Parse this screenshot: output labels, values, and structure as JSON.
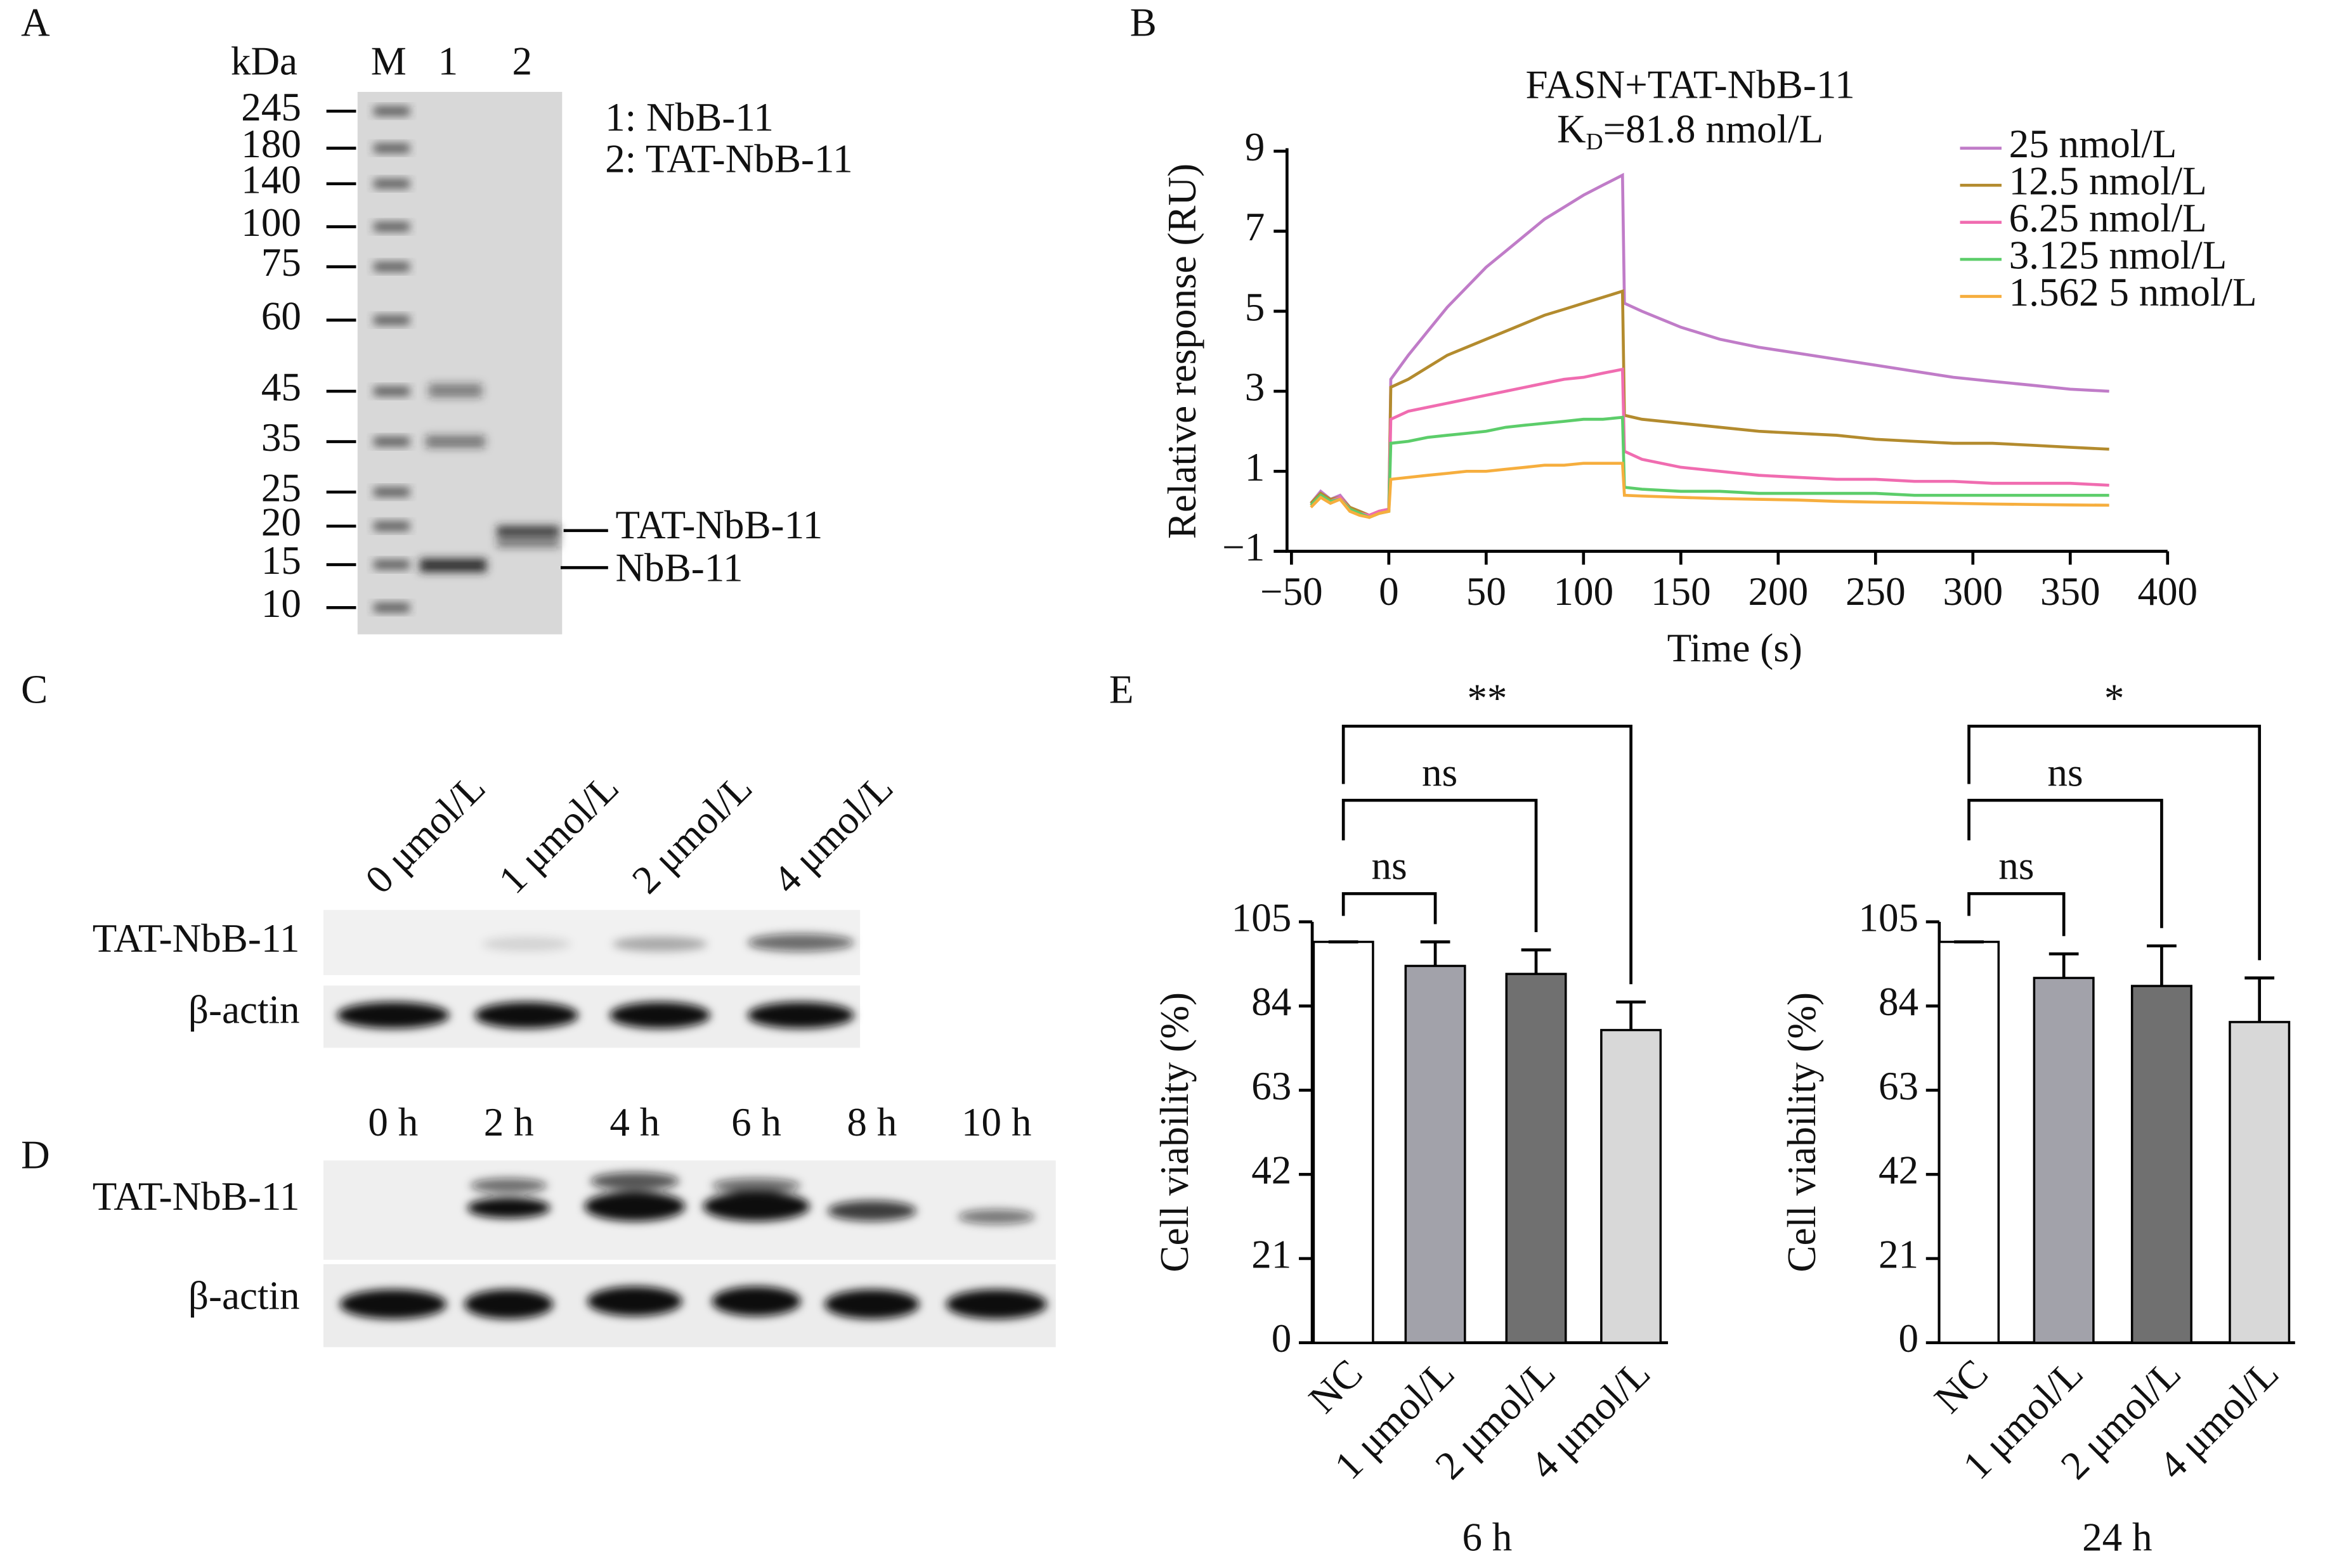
{
  "panel_labels": [
    "A",
    "B",
    "C",
    "D",
    "E"
  ],
  "gel": {
    "unit": "kDa",
    "lanes": [
      "M",
      "1",
      "2"
    ],
    "markers": [
      "245",
      "180",
      "140",
      "100",
      "75",
      "60",
      "45",
      "35",
      "25",
      "20",
      "15",
      "10"
    ],
    "legend": [
      "1: NbB-11",
      "2: TAT-NbB-11"
    ],
    "band_labels": [
      "TAT-NbB-11",
      "NbB-11"
    ]
  },
  "blot_c": {
    "lanes": [
      "0 μmol/L",
      "1 μmol/L",
      "2 μmol/L",
      "4 μmol/L"
    ],
    "rows": [
      "TAT-NbB-11",
      "β-actin"
    ]
  },
  "blot_d": {
    "lanes": [
      "0 h",
      "2 h",
      "4 h",
      "6 h",
      "8 h",
      "10 h"
    ],
    "rows": [
      "TAT-NbB-11",
      "β-actin"
    ]
  },
  "chart_data": [
    {
      "type": "line",
      "title": "FASN+TAT-NbB-11",
      "subtitle_parts": [
        "K",
        "D",
        "=81.8 nmol/L"
      ],
      "xlabel": "Time (s)",
      "ylabel": "Relative response (RU)",
      "xlim": [
        -50,
        400
      ],
      "ylim": [
        -1,
        9
      ],
      "xticks": [
        {
          "value": -50,
          "label": "−50"
        },
        0,
        50,
        100,
        150,
        200,
        250,
        300,
        350,
        400
      ],
      "yticks": [
        {
          "value": -1,
          "label": "−1"
        },
        1,
        3,
        5,
        7,
        9
      ],
      "legend": "top-right",
      "x": [
        -40,
        -35,
        -30,
        -25,
        -20,
        -15,
        -10,
        -5,
        0,
        1,
        10,
        20,
        30,
        40,
        50,
        60,
        70,
        80,
        90,
        100,
        110,
        120,
        121,
        130,
        150,
        170,
        190,
        210,
        230,
        250,
        270,
        290,
        310,
        330,
        350,
        370
      ],
      "series": [
        {
          "name": "25 nmol/L",
          "color": "#c07cc8",
          "values": [
            0.2,
            0.5,
            0.3,
            0.4,
            0.1,
            0.0,
            -0.1,
            0.0,
            0.05,
            3.3,
            3.9,
            4.5,
            5.1,
            5.6,
            6.1,
            6.5,
            6.9,
            7.3,
            7.6,
            7.9,
            8.15,
            8.4,
            5.2,
            5.0,
            4.6,
            4.3,
            4.1,
            3.95,
            3.8,
            3.65,
            3.5,
            3.35,
            3.25,
            3.15,
            3.05,
            3.0
          ]
        },
        {
          "name": "12.5 nmol/L",
          "color": "#b38b2e",
          "values": [
            0.2,
            0.45,
            0.3,
            0.35,
            0.1,
            0.0,
            -0.1,
            0.0,
            0.05,
            3.1,
            3.3,
            3.6,
            3.9,
            4.1,
            4.3,
            4.5,
            4.7,
            4.9,
            5.05,
            5.2,
            5.35,
            5.5,
            2.4,
            2.3,
            2.2,
            2.1,
            2.0,
            1.95,
            1.9,
            1.8,
            1.75,
            1.7,
            1.7,
            1.65,
            1.6,
            1.55
          ]
        },
        {
          "name": "6.25 nmol/L",
          "color": "#f06cb0",
          "values": [
            0.15,
            0.4,
            0.25,
            0.35,
            0.05,
            -0.05,
            -0.1,
            0.0,
            0.05,
            2.3,
            2.5,
            2.6,
            2.7,
            2.8,
            2.9,
            3.0,
            3.1,
            3.2,
            3.3,
            3.35,
            3.45,
            3.55,
            1.5,
            1.3,
            1.1,
            1.0,
            0.9,
            0.85,
            0.8,
            0.8,
            0.75,
            0.75,
            0.7,
            0.7,
            0.7,
            0.65
          ]
        },
        {
          "name": "3.125 nmol/L",
          "color": "#5ccd6a",
          "values": [
            0.15,
            0.4,
            0.25,
            0.3,
            0.05,
            -0.05,
            -0.15,
            -0.05,
            0.0,
            1.7,
            1.75,
            1.85,
            1.9,
            1.95,
            2.0,
            2.1,
            2.15,
            2.2,
            2.25,
            2.3,
            2.3,
            2.35,
            0.6,
            0.55,
            0.5,
            0.5,
            0.45,
            0.45,
            0.45,
            0.45,
            0.4,
            0.4,
            0.4,
            0.4,
            0.4,
            0.4
          ]
        },
        {
          "name": "1.562 5 nmol/L",
          "color": "#f6ae3e",
          "values": [
            0.1,
            0.35,
            0.2,
            0.3,
            0.0,
            -0.1,
            -0.15,
            -0.05,
            0.0,
            0.8,
            0.85,
            0.9,
            0.95,
            1.0,
            1.0,
            1.05,
            1.1,
            1.15,
            1.15,
            1.2,
            1.2,
            1.2,
            0.4,
            0.38,
            0.35,
            0.32,
            0.3,
            0.28,
            0.25,
            0.23,
            0.22,
            0.2,
            0.18,
            0.17,
            0.16,
            0.15
          ]
        }
      ]
    },
    {
      "type": "bar",
      "xlabel": "6 h",
      "ylabel": "Cell viability (%)",
      "categories": [
        "NC",
        "1 μmol/L",
        "2 μmol/L",
        "4 μmol/L"
      ],
      "values": [
        100,
        94,
        92,
        78
      ],
      "errors": [
        0,
        6,
        6,
        7
      ],
      "colors": [
        "#ffffff",
        "#a2a2aa",
        "#707070",
        "#d8d8d8"
      ],
      "significance": [
        "ns",
        "ns",
        "**"
      ],
      "ylim": [
        0,
        105
      ],
      "yticks": [
        0,
        21,
        42,
        63,
        84,
        105
      ]
    },
    {
      "type": "bar",
      "xlabel": "24 h",
      "ylabel": "Cell viability (%)",
      "categories": [
        "NC",
        "1 μmol/L",
        "2 μmol/L",
        "4 μmol/L"
      ],
      "values": [
        100,
        91,
        89,
        80
      ],
      "errors": [
        0,
        6,
        10,
        11
      ],
      "colors": [
        "#ffffff",
        "#a2a2aa",
        "#707070",
        "#d8d8d8"
      ],
      "significance": [
        "ns",
        "ns",
        "*"
      ],
      "ylim": [
        0,
        105
      ],
      "yticks": [
        0,
        21,
        42,
        63,
        84,
        105
      ]
    }
  ]
}
